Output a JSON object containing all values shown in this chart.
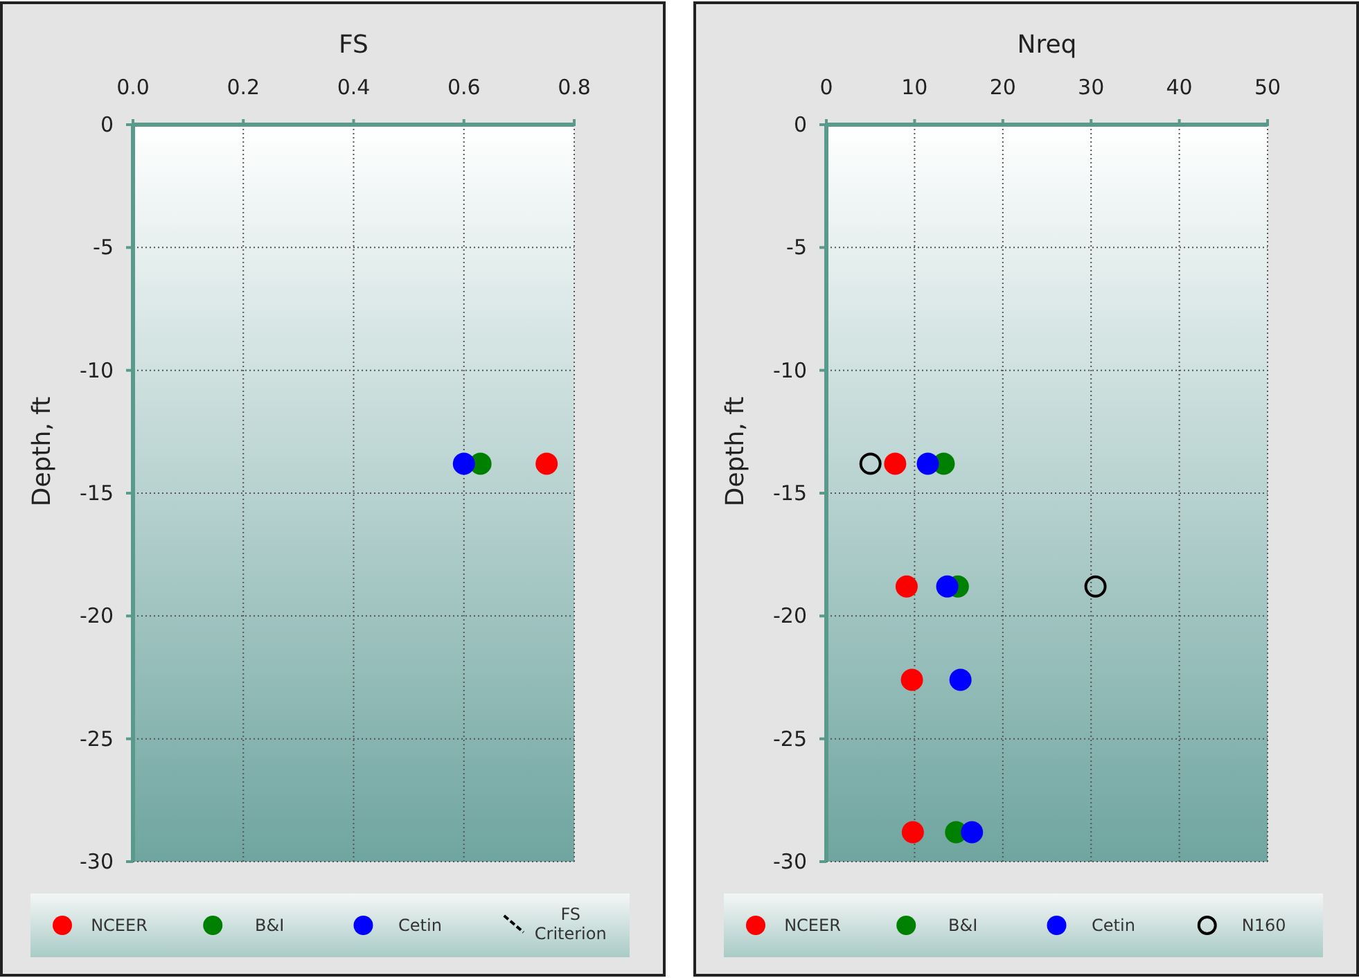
{
  "chart_data": [
    {
      "type": "scatter",
      "xlabel": "FS",
      "ylabel": "Depth, ft",
      "xlim": [
        0,
        0.8
      ],
      "xticks": [
        {
          "value": 0,
          "label": "0.0"
        },
        {
          "value": 0.2,
          "label": "0.2"
        },
        {
          "value": 0.4,
          "label": "0.4"
        },
        {
          "value": 0.6,
          "label": "0.6"
        },
        {
          "value": 0.8,
          "label": "0.8"
        }
      ],
      "ylim": [
        -30,
        0
      ],
      "yticks": [
        -30,
        -25,
        -20,
        -15,
        -10,
        -5,
        0
      ],
      "grid": true,
      "legend": "bottom",
      "marker": "circle",
      "series": [
        {
          "name": "NCEER",
          "color": "#ff0000",
          "x": [
            0.75
          ],
          "values": [
            -13.8
          ]
        },
        {
          "name": "B&I",
          "color": "#008000",
          "x": [
            0.63
          ],
          "values": [
            -13.8
          ]
        },
        {
          "name": "Cetin",
          "color": "#0000ff",
          "x": [
            0.6
          ],
          "values": [
            -13.8
          ]
        },
        {
          "name": "FS Criterion",
          "type": "line",
          "line_style": "dashed",
          "color": "#000000"
        }
      ]
    },
    {
      "type": "scatter",
      "xlabel": "Nreq",
      "ylabel": "Depth, ft",
      "xlim": [
        0,
        50
      ],
      "xticks": [
        0,
        10,
        20,
        30,
        40,
        50
      ],
      "ylim": [
        -30,
        0
      ],
      "yticks": [
        -30,
        -25,
        -20,
        -15,
        -10,
        -5,
        0
      ],
      "grid": true,
      "legend": "bottom",
      "marker": "circle",
      "series": [
        {
          "name": "NCEER",
          "color": "#ff0000",
          "x": [
            7.8,
            9.1,
            9.7,
            9.8
          ],
          "values": [
            -13.8,
            -18.8,
            -22.6,
            -28.8
          ]
        },
        {
          "name": "B&I",
          "color": "#008000",
          "x": [
            13.3,
            14.9,
            14.7
          ],
          "values": [
            -13.8,
            -18.8,
            -28.8
          ]
        },
        {
          "name": "Cetin",
          "color": "#0000ff",
          "x": [
            11.5,
            13.7,
            15.2,
            16.5
          ],
          "values": [
            -13.8,
            -18.8,
            -22.6,
            -28.8
          ]
        },
        {
          "name": "N160",
          "color": "#000000",
          "x": [
            5.0,
            30.5
          ],
          "values": [
            -13.8,
            -18.8
          ]
        }
      ]
    }
  ]
}
